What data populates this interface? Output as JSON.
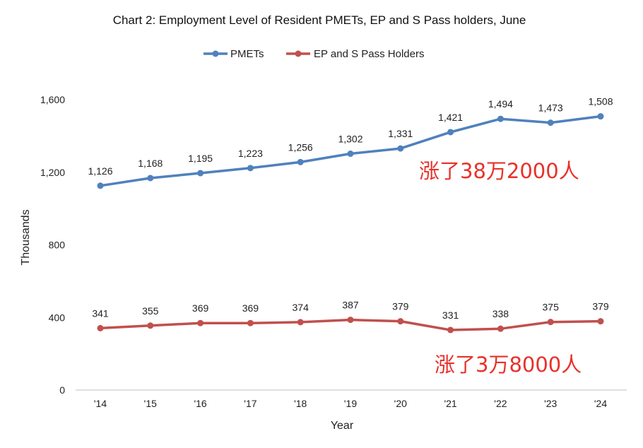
{
  "chart_data": {
    "type": "line",
    "title": "Chart 2: Employment Level of Resident PMETs, EP and S Pass holders, June",
    "xlabel": "Year",
    "ylabel": "Thousands",
    "categories": [
      "'14",
      "'15",
      "'16",
      "'17",
      "'18",
      "'19",
      "'20",
      "'21",
      "'22",
      "'23",
      "'24"
    ],
    "ylim": [
      0,
      1600
    ],
    "yticks": [
      0,
      400,
      800,
      1200,
      1600
    ],
    "ytick_labels": [
      "0",
      "400",
      "800",
      "1,200",
      "1,600"
    ],
    "grid": false,
    "legend_position": "top-center",
    "series": [
      {
        "name": "PMETs",
        "color": "#4f81bd",
        "values": [
          1126,
          1168,
          1195,
          1223,
          1256,
          1302,
          1331,
          1421,
          1494,
          1473,
          1508
        ],
        "labels": [
          "1,126",
          "1,168",
          "1,195",
          "1,223",
          "1,256",
          "1,302",
          "1,331",
          "1,421",
          "1,494",
          "1,473",
          "1,508"
        ]
      },
      {
        "name": "EP and S Pass Holders",
        "color": "#c0504d",
        "values": [
          341,
          355,
          369,
          369,
          374,
          387,
          379,
          331,
          338,
          375,
          379
        ],
        "labels": [
          "341",
          "355",
          "369",
          "369",
          "374",
          "387",
          "379",
          "331",
          "338",
          "375",
          "379"
        ]
      }
    ],
    "annotations": [
      {
        "text": "涨了38万2000人",
        "color": "#e8312a"
      },
      {
        "text": "涨了3万8000人",
        "color": "#e8312a"
      }
    ]
  }
}
